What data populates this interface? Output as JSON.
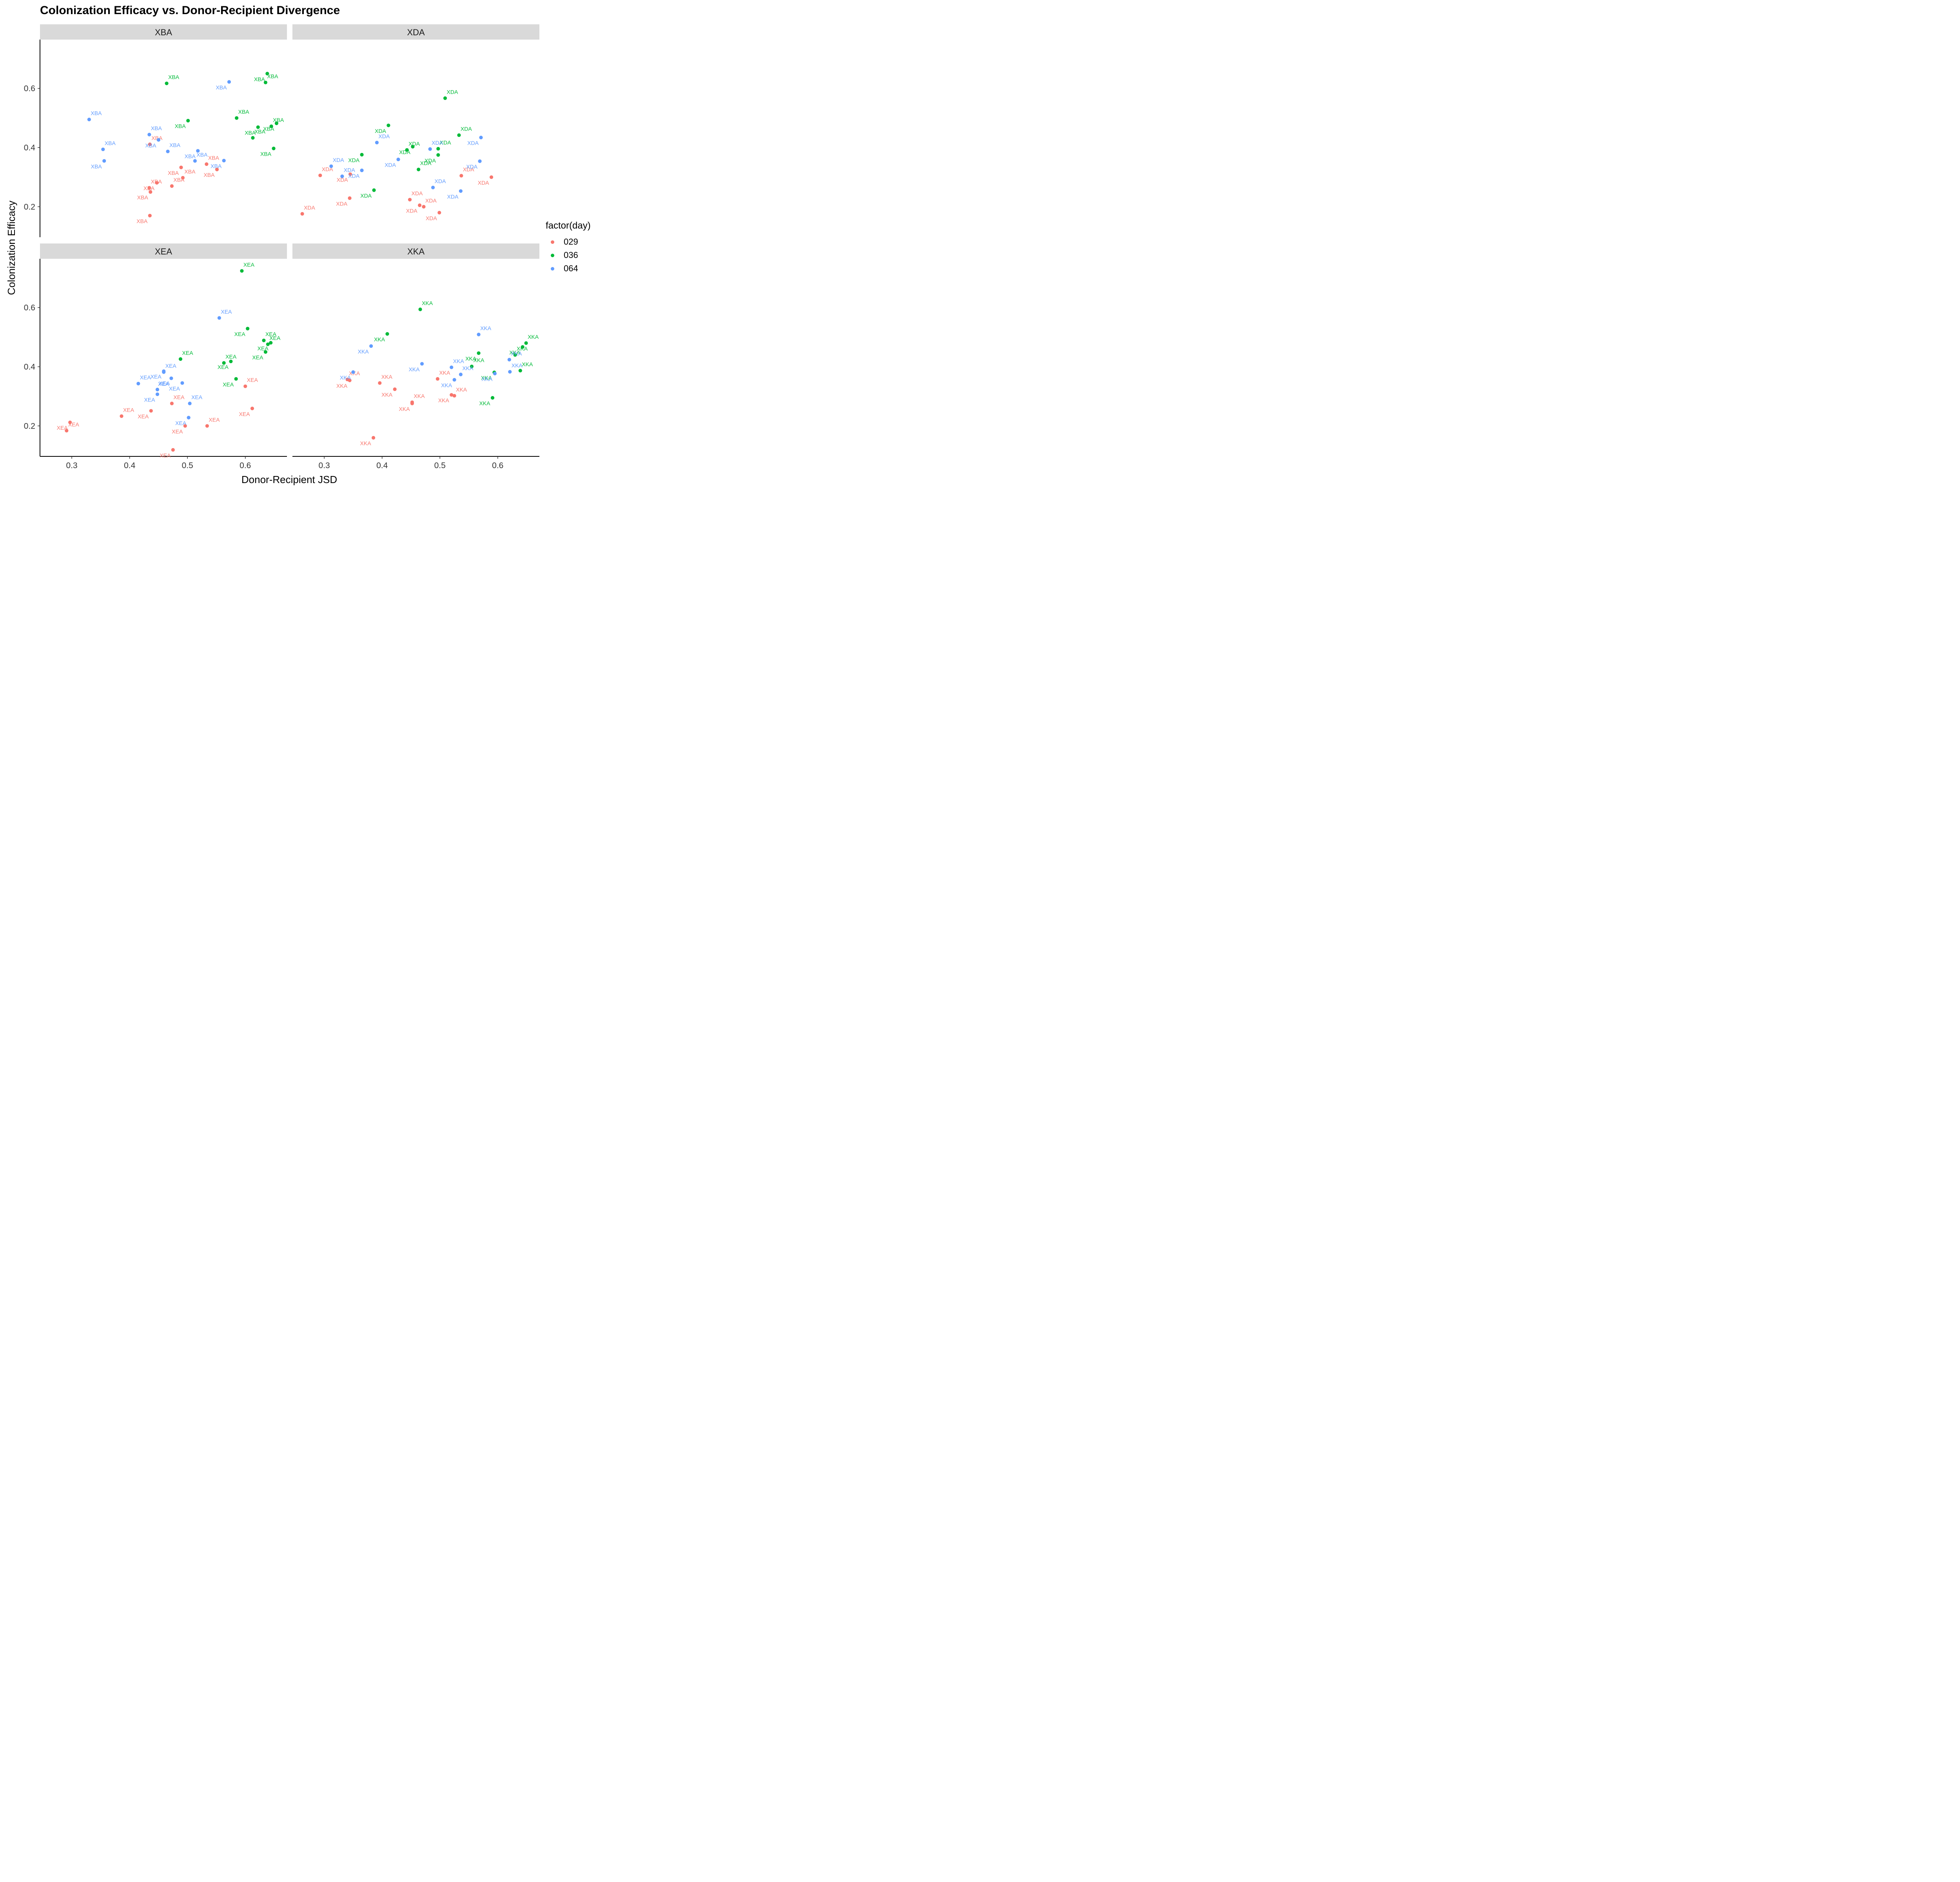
{
  "chart_data": {
    "type": "scatter",
    "title": "Colonization Efficacy vs. Donor-Recipient Divergence",
    "xlabel": "Donor-Recipient JSD",
    "ylabel": "Colonization Efficacy",
    "xlim": [
      0.245,
      0.672
    ],
    "ylim": [
      0.097,
      0.765
    ],
    "xticks": [
      0.3,
      0.4,
      0.5,
      0.6
    ],
    "xtick_labels": [
      "0.3",
      "0.4",
      "0.5",
      "0.6"
    ],
    "yticks": [
      0.2,
      0.4,
      0.6
    ],
    "ytick_labels": [
      "0.2",
      "0.4",
      "0.6"
    ],
    "grid": false,
    "legend": {
      "title": "factor(day)",
      "placement": "right",
      "entries": [
        {
          "label": "029",
          "color": "#F8766D"
        },
        {
          "label": "036",
          "color": "#00BA38"
        },
        {
          "label": "064",
          "color": "#619CFF"
        }
      ]
    },
    "facets": [
      {
        "label": "XBA",
        "series": [
          {
            "name": "029",
            "points": [
              [
                0.435,
                0.411
              ],
              [
                0.489,
                0.333
              ],
              [
                0.533,
                0.344
              ],
              [
                0.551,
                0.326
              ],
              [
                0.434,
                0.264
              ],
              [
                0.447,
                0.281
              ],
              [
                0.492,
                0.298
              ],
              [
                0.436,
                0.25
              ],
              [
                0.473,
                0.27
              ],
              [
                0.435,
                0.17
              ]
            ]
          },
          {
            "name": "036",
            "points": [
              [
                0.464,
                0.617
              ],
              [
                0.638,
                0.65
              ],
              [
                0.635,
                0.62
              ],
              [
                0.501,
                0.491
              ],
              [
                0.585,
                0.5
              ],
              [
                0.622,
                0.469
              ],
              [
                0.645,
                0.472
              ],
              [
                0.654,
                0.482
              ],
              [
                0.613,
                0.433
              ],
              [
                0.649,
                0.397
              ]
            ]
          },
          {
            "name": "064",
            "points": [
              [
                0.33,
                0.495
              ],
              [
                0.572,
                0.622
              ],
              [
                0.434,
                0.444
              ],
              [
                0.45,
                0.426
              ],
              [
                0.354,
                0.394
              ],
              [
                0.356,
                0.355
              ],
              [
                0.466,
                0.387
              ],
              [
                0.518,
                0.389
              ],
              [
                0.513,
                0.355
              ],
              [
                0.563,
                0.356
              ]
            ]
          }
        ]
      },
      {
        "label": "XDA",
        "series": [
          {
            "name": "029",
            "points": [
              [
                0.293,
                0.306
              ],
              [
                0.345,
                0.31
              ],
              [
                0.262,
                0.176
              ],
              [
                0.344,
                0.229
              ],
              [
                0.537,
                0.305
              ],
              [
                0.589,
                0.3
              ],
              [
                0.448,
                0.224
              ],
              [
                0.465,
                0.205
              ],
              [
                0.472,
                0.2
              ],
              [
                0.499,
                0.18
              ]
            ]
          },
          {
            "name": "036",
            "points": [
              [
                0.509,
                0.567
              ],
              [
                0.411,
                0.475
              ],
              [
                0.533,
                0.442
              ],
              [
                0.365,
                0.376
              ],
              [
                0.443,
                0.392
              ],
              [
                0.453,
                0.403
              ],
              [
                0.497,
                0.396
              ],
              [
                0.497,
                0.375
              ],
              [
                0.463,
                0.326
              ],
              [
                0.386,
                0.256
              ]
            ]
          },
          {
            "name": "064",
            "points": [
              [
                0.391,
                0.417
              ],
              [
                0.571,
                0.434
              ],
              [
                0.483,
                0.395
              ],
              [
                0.428,
                0.36
              ],
              [
                0.312,
                0.337
              ],
              [
                0.365,
                0.323
              ],
              [
                0.331,
                0.303
              ],
              [
                0.569,
                0.354
              ],
              [
                0.488,
                0.265
              ],
              [
                0.536,
                0.253
              ]
            ]
          }
        ]
      },
      {
        "label": "XEA",
        "series": [
          {
            "name": "029",
            "points": [
              [
                0.6,
                0.334
              ],
              [
                0.612,
                0.259
              ],
              [
                0.473,
                0.276
              ],
              [
                0.437,
                0.251
              ],
              [
                0.386,
                0.233
              ],
              [
                0.297,
                0.212
              ],
              [
                0.291,
                0.184
              ],
              [
                0.496,
                0.2
              ],
              [
                0.534,
                0.2
              ],
              [
                0.475,
                0.119
              ]
            ]
          },
          {
            "name": "036",
            "points": [
              [
                0.594,
                0.724
              ],
              [
                0.604,
                0.529
              ],
              [
                0.632,
                0.489
              ],
              [
                0.644,
                0.481
              ],
              [
                0.639,
                0.476
              ],
              [
                0.635,
                0.45
              ],
              [
                0.488,
                0.426
              ],
              [
                0.575,
                0.418
              ],
              [
                0.563,
                0.413
              ],
              [
                0.584,
                0.359
              ]
            ]
          },
          {
            "name": "064",
            "points": [
              [
                0.555,
                0.565
              ],
              [
                0.459,
                0.385
              ],
              [
                0.459,
                0.382
              ],
              [
                0.472,
                0.361
              ],
              [
                0.415,
                0.343
              ],
              [
                0.491,
                0.345
              ],
              [
                0.448,
                0.323
              ],
              [
                0.448,
                0.307
              ],
              [
                0.504,
                0.276
              ],
              [
                0.502,
                0.228
              ]
            ]
          }
        ]
      },
      {
        "label": "XKA",
        "series": [
          {
            "name": "029",
            "points": [
              [
                0.34,
                0.357
              ],
              [
                0.344,
                0.354
              ],
              [
                0.396,
                0.345
              ],
              [
                0.422,
                0.324
              ],
              [
                0.452,
                0.28
              ],
              [
                0.452,
                0.276
              ],
              [
                0.496,
                0.359
              ],
              [
                0.52,
                0.305
              ],
              [
                0.525,
                0.302
              ],
              [
                0.385,
                0.16
              ]
            ]
          },
          {
            "name": "036",
            "points": [
              [
                0.466,
                0.594
              ],
              [
                0.409,
                0.511
              ],
              [
                0.649,
                0.48
              ],
              [
                0.643,
                0.467
              ],
              [
                0.63,
                0.44
              ],
              [
                0.567,
                0.446
              ],
              [
                0.555,
                0.401
              ],
              [
                0.594,
                0.381
              ],
              [
                0.639,
                0.387
              ],
              [
                0.591,
                0.295
              ]
            ]
          },
          {
            "name": "064",
            "points": [
              [
                0.567,
                0.509
              ],
              [
                0.381,
                0.47
              ],
              [
                0.62,
                0.424
              ],
              [
                0.469,
                0.41
              ],
              [
                0.52,
                0.398
              ],
              [
                0.35,
                0.382
              ],
              [
                0.536,
                0.374
              ],
              [
                0.595,
                0.377
              ],
              [
                0.621,
                0.383
              ],
              [
                0.525,
                0.356
              ]
            ]
          }
        ]
      }
    ]
  }
}
